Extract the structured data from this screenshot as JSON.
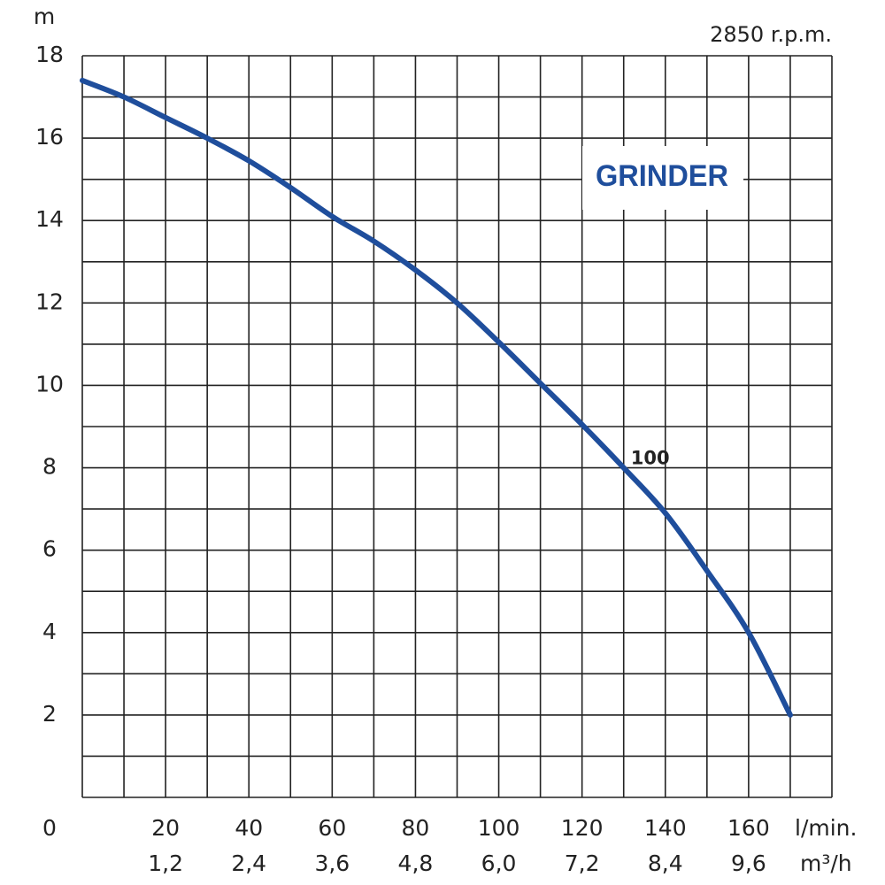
{
  "chart_data": {
    "type": "line",
    "y_label": "m",
    "x_label": "l/min.",
    "x2_label": "m³/h",
    "annotation": "2850 r.p.m.",
    "title": "GRINDER",
    "x": [
      0,
      10,
      20,
      30,
      40,
      50,
      60,
      70,
      80,
      90,
      100,
      110,
      120,
      130,
      140,
      150,
      160,
      170
    ],
    "series": [
      {
        "name": "100",
        "color": "#1f4e9c",
        "values": [
          17.4,
          17.0,
          16.5,
          16.0,
          15.45,
          14.8,
          14.1,
          13.5,
          12.8,
          12.0,
          11.05,
          10.05,
          9.05,
          8.0,
          6.9,
          5.5,
          4.0,
          2.0
        ]
      }
    ],
    "xlim": [
      0,
      180
    ],
    "ylim": [
      0,
      18
    ],
    "x2lim": [
      0,
      10.8
    ],
    "xticks": [
      20,
      40,
      60,
      80,
      100,
      120,
      140,
      160
    ],
    "x2ticks": [
      {
        "value": 1.2,
        "label": "1,2"
      },
      {
        "value": 2.4,
        "label": "2,4"
      },
      {
        "value": 3.6,
        "label": "3,6"
      },
      {
        "value": 4.8,
        "label": "4,8"
      },
      {
        "value": 6.0,
        "label": "6,0"
      },
      {
        "value": 7.2,
        "label": "7,2"
      },
      {
        "value": 8.4,
        "label": "8,4"
      },
      {
        "value": 9.6,
        "label": "9,6"
      }
    ],
    "yticks": [
      0,
      2,
      4,
      6,
      8,
      10,
      12,
      14,
      16,
      18
    ],
    "xgrid": [
      0,
      10,
      20,
      30,
      40,
      50,
      60,
      70,
      80,
      90,
      100,
      110,
      120,
      130,
      140,
      150,
      160,
      170,
      180
    ],
    "ygrid": [
      0,
      1,
      2,
      3,
      4,
      5,
      6,
      7,
      8,
      9,
      10,
      11,
      12,
      13,
      14,
      15,
      16,
      17,
      18
    ],
    "grid": true
  }
}
